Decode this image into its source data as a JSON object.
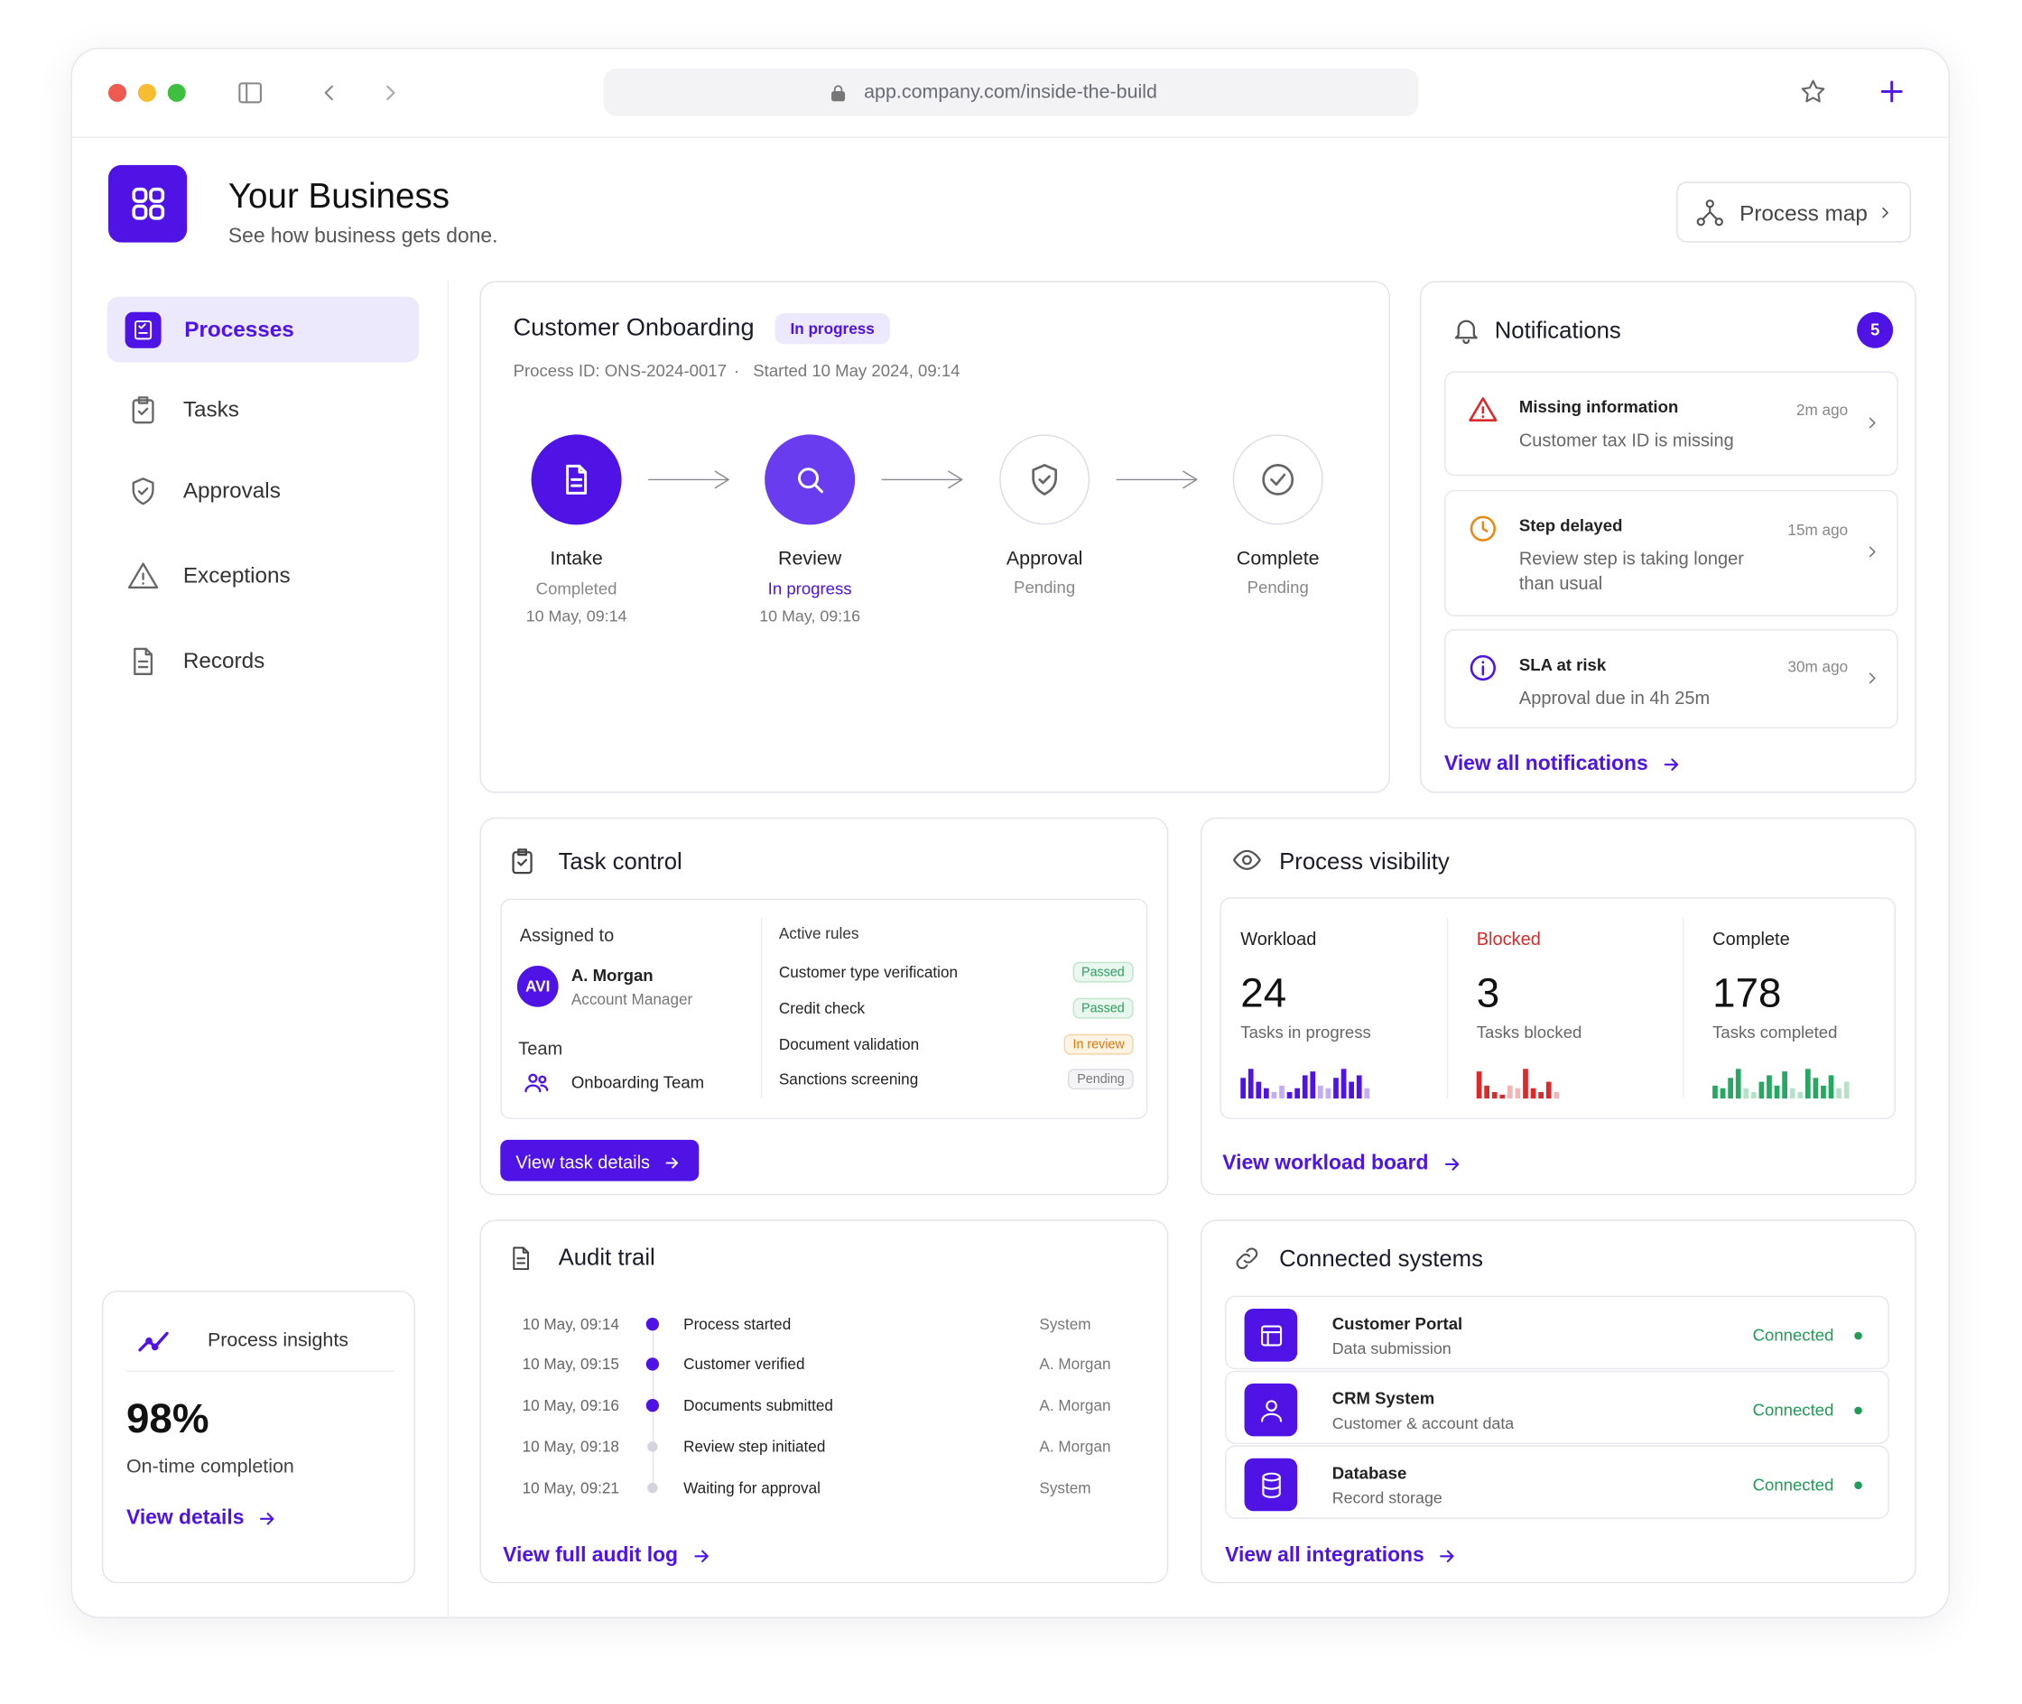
{
  "browser": {
    "url": "app.company.com/inside-the-build"
  },
  "header": {
    "title": "Your Business",
    "subtitle": "See how business gets done.",
    "process_map": "Process map"
  },
  "sidebar": {
    "nav": [
      "Processes",
      "Tasks",
      "Approvals",
      "Exceptions",
      "Records"
    ],
    "insights": {
      "title": "Process insights",
      "value": "98%",
      "label": "On-time completion",
      "link": "View details"
    }
  },
  "onboarding": {
    "title": "Customer Onboarding",
    "status": "In progress",
    "process_id": "Process ID: ONS-2024-0017",
    "separator": "·",
    "started": "Started 10 May 2024, 09:14",
    "steps": [
      {
        "name": "Intake",
        "status": "Completed",
        "time": "10 May, 09:14",
        "color": "#4f13e6"
      },
      {
        "name": "Review",
        "status": "In progress",
        "time": "10 May, 09:16",
        "color": "#6a3cf0"
      },
      {
        "name": "Approval",
        "status": "Pending",
        "color": "#ffffff"
      },
      {
        "name": "Complete",
        "status": "Pending",
        "color": "#ffffff"
      }
    ]
  },
  "notifications": {
    "title": "Notifications",
    "count": 5,
    "items": [
      {
        "title": "Missing information",
        "text": "Customer tax ID is missing",
        "time": "2m ago"
      },
      {
        "title": "Step delayed",
        "text": "Review step is taking longer than usual",
        "time": "15m ago"
      },
      {
        "title": "SLA at risk",
        "text": "Approval due in 4h 25m",
        "time": "30m ago"
      }
    ],
    "link": "View all notifications"
  },
  "task_control": {
    "title": "Task control",
    "assigned_label": "Assigned to",
    "initials": "AVI",
    "person": "A. Morgan",
    "role": "Account Manager",
    "team_label": "Team",
    "team": "Onboarding Team",
    "rules_label": "Active rules",
    "rules": [
      {
        "name": "Customer type verification",
        "status": "Passed"
      },
      {
        "name": "Credit check",
        "status": "Passed"
      },
      {
        "name": "Document validation",
        "status": "In review"
      },
      {
        "name": "Sanctions screening",
        "status": "Pending"
      }
    ],
    "button": "View task details"
  },
  "visibility": {
    "title": "Process visibility",
    "stats": [
      {
        "label": "Workload",
        "value": 24,
        "caption": "Tasks in progress",
        "color": "#4f13e6",
        "bars": [
          6,
          9,
          5,
          3,
          2,
          4,
          2,
          3,
          7,
          8,
          4,
          3,
          6,
          9,
          5,
          7,
          3
        ]
      },
      {
        "label": "Blocked",
        "value": 3,
        "caption": "Tasks blocked",
        "color": "#d92b2b",
        "bars": [
          8,
          4,
          2,
          1,
          4,
          3,
          9,
          3,
          2,
          5,
          2
        ]
      },
      {
        "label": "Complete",
        "value": 178,
        "caption": "Tasks completed",
        "color": "#27a862",
        "bars": [
          4,
          3,
          6,
          9,
          3,
          2,
          5,
          7,
          4,
          8,
          3,
          2,
          9,
          6,
          4,
          7,
          3,
          5
        ]
      }
    ],
    "link": "View workload board"
  },
  "audit": {
    "title": "Audit trail",
    "entries": [
      {
        "time": "10 May, 09:14",
        "event": "Process started",
        "actor": "System"
      },
      {
        "time": "10 May, 09:15",
        "event": "Customer verified",
        "actor": "A. Morgan"
      },
      {
        "time": "10 May, 09:16",
        "event": "Documents submitted",
        "actor": "A. Morgan"
      },
      {
        "time": "10 May, 09:18",
        "event": "Review step initiated",
        "actor": "A. Morgan"
      },
      {
        "time": "10 May, 09:21",
        "event": "Waiting for approval",
        "actor": "System"
      }
    ],
    "link": "View full audit log"
  },
  "systems": {
    "title": "Connected systems",
    "items": [
      {
        "name": "Customer Portal",
        "desc": "Data submission",
        "status": "Connected"
      },
      {
        "name": "CRM System",
        "desc": "Customer & account data",
        "status": "Connected"
      },
      {
        "name": "Database",
        "desc": "Record storage",
        "status": "Connected"
      }
    ],
    "link": "View all integrations"
  }
}
